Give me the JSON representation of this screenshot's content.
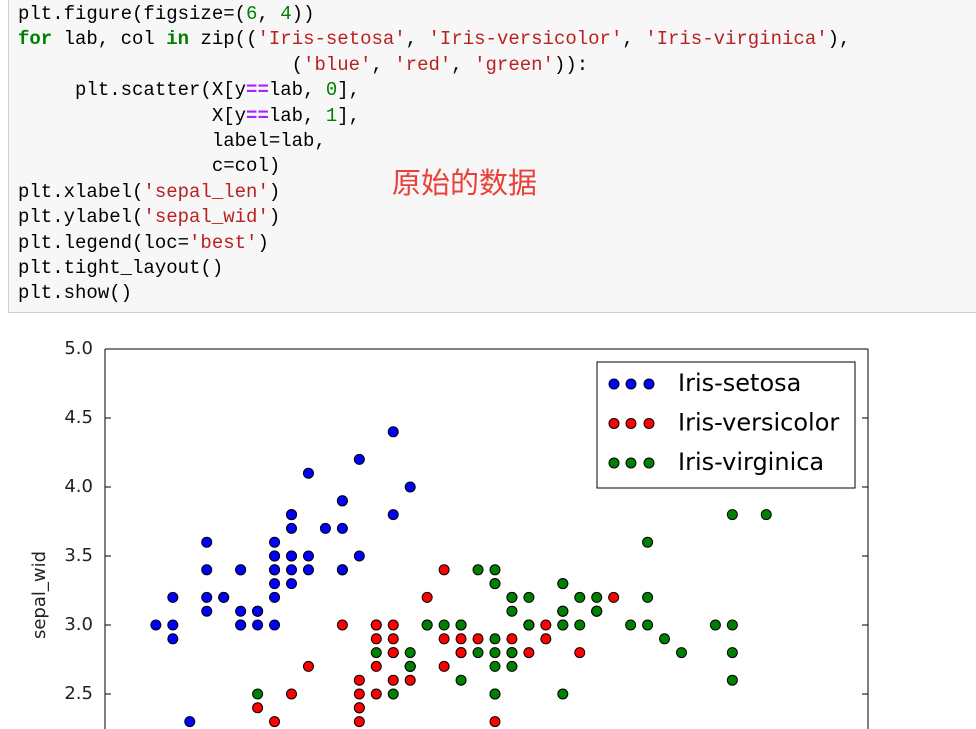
{
  "code": {
    "lines": [
      "plt.figure(figsize=(6, 4))",
      "for lab, col in zip(('Iris-setosa', 'Iris-versicolor', 'Iris-virginica'),",
      "                        ('blue', 'red', 'green')):",
      "     plt.scatter(X[y==lab, 0],",
      "                 X[y==lab, 1],",
      "                 label=lab,",
      "                 c=col)",
      "plt.xlabel('sepal_len')",
      "plt.ylabel('sepal_wid')",
      "plt.legend(loc='best')",
      "plt.tight_layout()",
      "plt.show()"
    ]
  },
  "annotation": "原始的数据",
  "chart_data": {
    "type": "scatter",
    "ylabel": "sepal_wid",
    "xlim": [
      4,
      8.5
    ],
    "ylim": [
      2,
      5
    ],
    "yticks": [
      {
        "value": 2.5,
        "label": "2.5"
      },
      {
        "value": 3,
        "label": "3.0"
      },
      {
        "value": 3.5,
        "label": "3.5"
      },
      {
        "value": 4,
        "label": "4.0"
      },
      {
        "value": 4.5,
        "label": "4.5"
      },
      {
        "value": 5,
        "label": "5.0"
      }
    ],
    "legend": "upper right",
    "series": [
      {
        "name": "Iris-setosa",
        "color": "#0000ff",
        "x": [
          5.1,
          4.9,
          4.7,
          4.6,
          5.0,
          5.4,
          4.6,
          5.0,
          4.4,
          4.9,
          5.4,
          4.8,
          4.8,
          4.3,
          5.8,
          5.7,
          5.4,
          5.1,
          5.7,
          5.1,
          5.4,
          5.1,
          4.6,
          5.1,
          4.8,
          5.0,
          5.0,
          5.2,
          5.2,
          4.7,
          4.8,
          5.4,
          5.2,
          5.5,
          4.9,
          5.0,
          5.5,
          4.9,
          4.4,
          5.1,
          5.0,
          4.5,
          4.4,
          5.0,
          5.1,
          4.8,
          5.1,
          4.6,
          5.3,
          5.0
        ],
        "values": [
          3.5,
          3.0,
          3.2,
          3.1,
          3.6,
          3.9,
          3.4,
          3.4,
          2.9,
          3.1,
          3.7,
          3.4,
          3.0,
          3.0,
          4.0,
          4.4,
          3.9,
          3.5,
          3.8,
          3.8,
          3.4,
          3.7,
          3.6,
          3.3,
          3.4,
          3.0,
          3.4,
          3.5,
          3.4,
          3.2,
          3.1,
          3.4,
          4.1,
          4.2,
          3.1,
          3.2,
          3.5,
          3.1,
          3.0,
          3.4,
          3.5,
          2.3,
          3.2,
          3.5,
          3.8,
          3.0,
          3.8,
          3.2,
          3.7,
          3.3
        ]
      },
      {
        "name": "Iris-versicolor",
        "color": "#ff0000",
        "x": [
          7.0,
          6.4,
          6.9,
          5.5,
          6.5,
          5.7,
          6.3,
          4.9,
          6.6,
          5.2,
          5.9,
          6.1,
          5.6,
          6.7,
          5.6,
          5.8,
          5.6,
          5.9,
          6.1,
          6.3,
          6.1,
          6.4,
          6.6,
          6.8,
          6.7,
          6.0,
          5.7,
          5.5,
          5.5,
          5.8,
          6.0,
          5.4,
          6.0,
          6.7,
          6.3,
          5.6,
          5.5,
          5.5,
          6.1,
          5.8,
          5.0,
          5.6,
          5.7,
          5.7,
          6.2,
          5.1,
          5.7
        ],
        "values": [
          3.2,
          3.2,
          3.1,
          2.3,
          2.8,
          2.8,
          3.3,
          2.4,
          2.9,
          2.7,
          3.0,
          2.9,
          2.9,
          3.1,
          3.0,
          2.7,
          2.5,
          3.2,
          2.8,
          2.5,
          2.8,
          2.9,
          3.0,
          2.8,
          3.0,
          2.9,
          2.6,
          2.4,
          2.4,
          2.7,
          2.7,
          3.0,
          3.4,
          3.1,
          2.3,
          3.0,
          2.5,
          2.6,
          3.0,
          2.6,
          2.3,
          2.7,
          3.0,
          2.9,
          2.9,
          2.5,
          2.8
        ]
      },
      {
        "name": "Iris-virginica",
        "color": "#008000",
        "x": [
          6.3,
          5.8,
          7.1,
          6.3,
          6.5,
          7.6,
          4.9,
          7.3,
          6.7,
          7.2,
          6.5,
          6.4,
          6.8,
          5.7,
          5.8,
          6.4,
          6.5,
          7.7,
          7.7,
          6.9,
          5.6,
          7.7,
          6.3,
          6.7,
          7.2,
          6.2,
          6.1,
          6.4,
          7.2,
          7.4,
          7.9,
          6.4,
          6.3,
          6.1,
          7.7,
          6.3,
          6.4,
          6.0,
          6.9,
          6.7,
          6.9,
          5.8,
          6.8,
          6.7,
          6.7,
          6.3,
          6.5,
          6.2,
          5.9
        ],
        "values": [
          3.3,
          2.7,
          3.0,
          2.9,
          3.0,
          3.0,
          2.5,
          2.9,
          2.5,
          3.6,
          3.2,
          2.7,
          3.0,
          2.5,
          2.8,
          3.2,
          3.0,
          3.8,
          2.6,
          3.2,
          2.8,
          2.8,
          2.7,
          3.3,
          3.2,
          2.8,
          3.0,
          2.8,
          3.0,
          2.8,
          3.8,
          2.8,
          2.8,
          2.6,
          3.0,
          3.4,
          3.1,
          3.0,
          3.1,
          3.1,
          3.1,
          2.7,
          3.2,
          3.3,
          3.0,
          2.5,
          3.0,
          3.4,
          3.0
        ]
      }
    ]
  }
}
